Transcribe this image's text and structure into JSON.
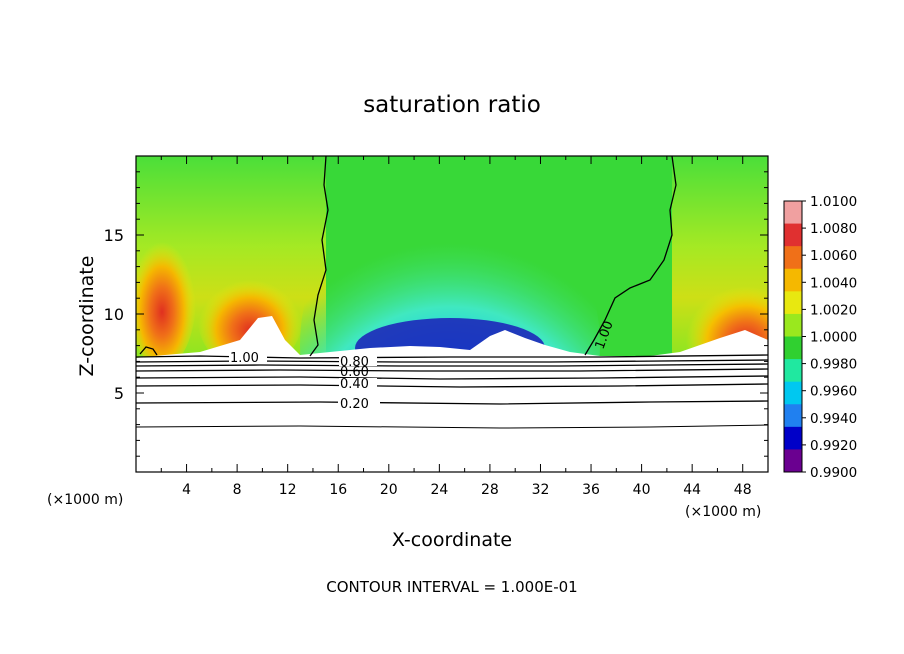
{
  "chart_data": {
    "type": "heatmap",
    "title": "saturation ratio",
    "xlabel": "X-coordinate",
    "ylabel": "Z-coordinate",
    "x_unit": "(×1000 m)",
    "footer": "CONTOUR INTERVAL = 1.000E-01",
    "xlim": [
      0,
      50
    ],
    "ylim": [
      0,
      20
    ],
    "x_ticks": [
      4,
      8,
      12,
      16,
      20,
      24,
      28,
      32,
      36,
      40,
      44,
      48
    ],
    "y_ticks": [
      5,
      10,
      15
    ],
    "colorbar": {
      "labels": [
        "1.0100",
        "1.0080",
        "1.0060",
        "1.0040",
        "1.0020",
        "1.0000",
        "0.9980",
        "0.9960",
        "0.9940",
        "0.9920",
        "0.9900"
      ],
      "colors": [
        "#f0a0a0",
        "#e03030",
        "#f07018",
        "#f5b800",
        "#e8e810",
        "#9ae81e",
        "#30d030",
        "#20e8a0",
        "#00c8f0",
        "#2080f0",
        "#0000c8",
        "#6a0090"
      ]
    },
    "contours": [
      {
        "level": "1.00",
        "label": "1.00"
      },
      {
        "level": "0.80",
        "label": "0.80"
      },
      {
        "level": "0.60",
        "label": "0.60"
      },
      {
        "level": "0.40",
        "label": "0.40"
      },
      {
        "level": "0.20",
        "label": "0.20"
      }
    ]
  }
}
